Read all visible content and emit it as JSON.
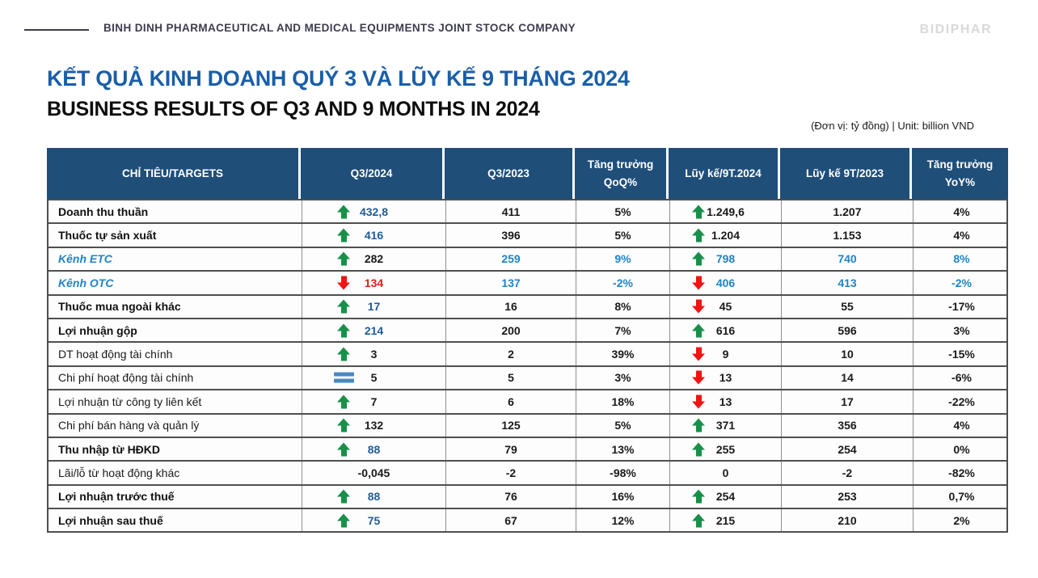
{
  "header": {
    "company": "BINH DINH PHARMACEUTICAL AND MEDICAL EQUIPMENTS JOINT STOCK COMPANY",
    "logo": "BIDIPHAR"
  },
  "title": {
    "vi": "KẾT QUẢ KINH DOANH QUÝ 3 VÀ LŨY KẾ 9 THÁNG 2024",
    "en": "BUSINESS RESULTS OF Q3 AND 9 MONTHS IN 2024",
    "unit_note": "(Đơn vị: tỷ đồng) | Unit: billion VND"
  },
  "colors": {
    "header_bg": "#1f4e79",
    "title_blue": "#1a5ea8",
    "accent_blue": "#2283c5",
    "highlight_navy": "#1f5c99",
    "up_green": "#18904a",
    "down_red": "#f11414",
    "equal_blue": "#4a89c0"
  },
  "table": {
    "columns": [
      "CHỈ TIÊU/TARGETS",
      "Q3/2024",
      "Q3/2023",
      "Tăng trưởng\nQoQ%",
      "Lũy kế/9T.2024",
      "Lũy kế 9T/2023",
      "Tăng trưởng YoY%"
    ],
    "rows": [
      {
        "label": "Doanh thu thuần",
        "style": "bold",
        "cells": [
          {
            "arrow": "up",
            "value": "432,8",
            "color": "navy"
          },
          {
            "value": "411",
            "color": "black"
          },
          {
            "value": "5%",
            "color": "black"
          },
          {
            "arrow": "up",
            "value": "1.249,6",
            "color": "black"
          },
          {
            "value": "1.207",
            "color": "black"
          },
          {
            "value": "4%",
            "color": "black"
          }
        ]
      },
      {
        "label": "Thuốc tự sản xuất",
        "style": "bold",
        "cells": [
          {
            "arrow": "up",
            "value": "416",
            "color": "navy"
          },
          {
            "value": "396",
            "color": "black"
          },
          {
            "value": "5%",
            "color": "black"
          },
          {
            "arrow": "up",
            "value": "1.204",
            "color": "black"
          },
          {
            "value": "1.153",
            "color": "black"
          },
          {
            "value": "4%",
            "color": "black"
          }
        ]
      },
      {
        "label": "Kênh ETC",
        "style": "blue-italic",
        "cells": [
          {
            "arrow": "up",
            "value": "282",
            "color": "black"
          },
          {
            "value": "259",
            "color": "blue"
          },
          {
            "value": "9%",
            "color": "blue"
          },
          {
            "arrow": "up",
            "value": "798",
            "color": "blue"
          },
          {
            "value": "740",
            "color": "blue"
          },
          {
            "value": "8%",
            "color": "blue"
          }
        ]
      },
      {
        "label": "Kênh OTC",
        "style": "blue-italic",
        "cells": [
          {
            "arrow": "down",
            "value": "134",
            "color": "red"
          },
          {
            "value": "137",
            "color": "blue"
          },
          {
            "value": "-2%",
            "color": "blue"
          },
          {
            "arrow": "down",
            "value": "406",
            "color": "blue"
          },
          {
            "value": "413",
            "color": "blue"
          },
          {
            "value": "-2%",
            "color": "blue"
          }
        ]
      },
      {
        "label": "Thuốc mua ngoài khác",
        "style": "bold",
        "cells": [
          {
            "arrow": "up",
            "value": "17",
            "color": "navy"
          },
          {
            "value": "16",
            "color": "black"
          },
          {
            "value": "8%",
            "color": "black"
          },
          {
            "arrow": "down",
            "value": "45",
            "color": "black"
          },
          {
            "value": "55",
            "color": "black"
          },
          {
            "value": "-17%",
            "color": "black"
          }
        ]
      },
      {
        "label": "Lợi nhuận gộp",
        "style": "bold",
        "cells": [
          {
            "arrow": "up",
            "value": "214",
            "color": "navy"
          },
          {
            "value": "200",
            "color": "black"
          },
          {
            "value": "7%",
            "color": "black"
          },
          {
            "arrow": "up",
            "value": "616",
            "color": "black"
          },
          {
            "value": "596",
            "color": "black"
          },
          {
            "value": "3%",
            "color": "black"
          }
        ]
      },
      {
        "label": "DT hoạt động tài chính",
        "style": "normal",
        "cells": [
          {
            "arrow": "up",
            "value": "3",
            "color": "black"
          },
          {
            "value": "2",
            "color": "black"
          },
          {
            "value": "39%",
            "color": "black"
          },
          {
            "arrow": "down",
            "value": "9",
            "color": "black"
          },
          {
            "value": "10",
            "color": "black"
          },
          {
            "value": "-15%",
            "color": "black"
          }
        ]
      },
      {
        "label": "Chi phí hoạt động tài chính",
        "style": "normal",
        "cells": [
          {
            "arrow": "equal",
            "value": "5",
            "color": "black"
          },
          {
            "value": "5",
            "color": "black"
          },
          {
            "value": "3%",
            "color": "black"
          },
          {
            "arrow": "down",
            "value": "13",
            "color": "black"
          },
          {
            "value": "14",
            "color": "black"
          },
          {
            "value": "-6%",
            "color": "black"
          }
        ]
      },
      {
        "label": "Lợi nhuận từ công ty liên kết",
        "style": "normal",
        "cells": [
          {
            "arrow": "up",
            "value": "7",
            "color": "black"
          },
          {
            "value": "6",
            "color": "black"
          },
          {
            "value": "18%",
            "color": "black"
          },
          {
            "arrow": "down",
            "value": "13",
            "color": "black"
          },
          {
            "value": "17",
            "color": "black"
          },
          {
            "value": "-22%",
            "color": "black"
          }
        ]
      },
      {
        "label": "Chi phí bán hàng và quản lý",
        "style": "normal",
        "cells": [
          {
            "arrow": "up",
            "value": "132",
            "color": "black"
          },
          {
            "value": "125",
            "color": "black"
          },
          {
            "value": "5%",
            "color": "black"
          },
          {
            "arrow": "up",
            "value": "371",
            "color": "black"
          },
          {
            "value": "356",
            "color": "black"
          },
          {
            "value": "4%",
            "color": "black"
          }
        ]
      },
      {
        "label": "Thu nhập từ HĐKD",
        "style": "bold",
        "cells": [
          {
            "arrow": "up",
            "value": "88",
            "color": "navy"
          },
          {
            "value": "79",
            "color": "black"
          },
          {
            "value": "13%",
            "color": "black"
          },
          {
            "arrow": "up",
            "value": "255",
            "color": "black"
          },
          {
            "value": "254",
            "color": "black"
          },
          {
            "value": "0%",
            "color": "black"
          }
        ]
      },
      {
        "label": "Lãi/lỗ từ hoạt động khác",
        "style": "normal",
        "cells": [
          {
            "arrow": null,
            "value": "-0,045",
            "color": "black"
          },
          {
            "value": "-2",
            "color": "black"
          },
          {
            "value": "-98%",
            "color": "black"
          },
          {
            "arrow": null,
            "value": "0",
            "color": "black"
          },
          {
            "value": "-2",
            "color": "black"
          },
          {
            "value": "-82%",
            "color": "black"
          }
        ]
      },
      {
        "label": "Lợi nhuận trước thuế",
        "style": "bold",
        "cells": [
          {
            "arrow": "up",
            "value": "88",
            "color": "navy"
          },
          {
            "value": "76",
            "color": "black"
          },
          {
            "value": "16%",
            "color": "black"
          },
          {
            "arrow": "up",
            "value": "254",
            "color": "black"
          },
          {
            "value": "253",
            "color": "black"
          },
          {
            "value": "0,7%",
            "color": "black"
          }
        ]
      },
      {
        "label": "Lợi nhuận sau thuế",
        "style": "bold",
        "cells": [
          {
            "arrow": "up",
            "value": "75",
            "color": "navy"
          },
          {
            "value": "67",
            "color": "black"
          },
          {
            "value": "12%",
            "color": "black"
          },
          {
            "arrow": "up",
            "value": "215",
            "color": "black"
          },
          {
            "value": "210",
            "color": "black"
          },
          {
            "value": "2%",
            "color": "black"
          }
        ]
      }
    ]
  }
}
